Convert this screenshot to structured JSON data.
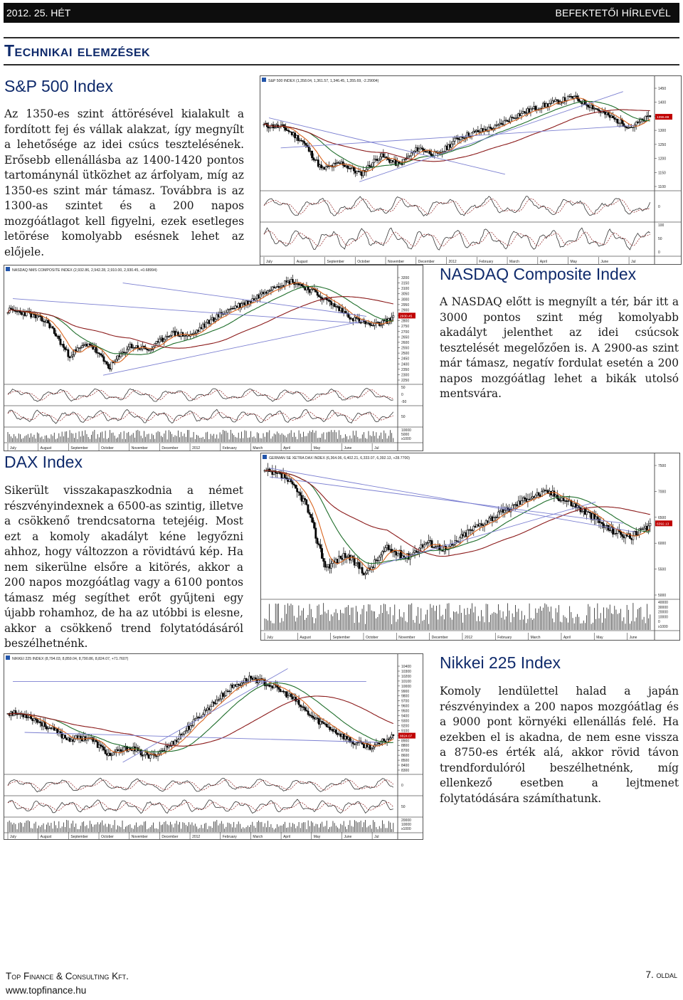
{
  "header": {
    "date": "2012. 25. HÉT",
    "publication": "BEFEKTETŐI HÍRLEVÉL"
  },
  "section_title": "Technikai elemzések",
  "sp500": {
    "title": "S&P 500 Index",
    "text": "Az 1350-es szint áttörésével kialakult a fordított fej és vállak alakzat, így megnyílt a lehetősége az idei csúcs tesztelésének. Erősebb ellenállásba az 1400-1420 pontos tartománynál ütközhet az árfolyam, míg az 1350-es szint már támasz. Továbbra is az 1300-as szintet és a 200 napos mozgóátlagot kell figyelni, ezek esetleges letörése komolyabb esésnek lehet az előjele."
  },
  "nasdaq": {
    "title": "NASDAQ Composite Index",
    "text": "A NASDAQ előtt is megnyílt a tér, bár itt a 3000 pontos szint még komolyabb akadályt jelenthet az idei csúcsok tesztelését megelőzően is. A 2900-as szint már támasz, negatív fordulat esetén a 200 napos mozgóátlag lehet a bikák utolsó mentsvára."
  },
  "dax": {
    "title": "DAX Index",
    "text": "Sikerült visszakapaszkodnia a német részvényindexnek a 6500-as szintig, illetve a csökkenő trendcsatorna tetejéig. Most ezt a komoly akadályt kéne legyőzni ahhoz, hogy változzon a rövidtávú kép. Ha nem sikerülne elsőre a kitörés, akkor a 200 napos mozgóátlag vagy a 6100 pontos támasz még segíthet erőt gyűjteni egy újabb rohamhoz, de ha az utóbbi is elesne, akkor a csökkenő trend folytatódásáról beszélhetnénk."
  },
  "nikkei": {
    "title": "Nikkei 225 Index",
    "text": "Komoly lendülettel halad a japán részvényindex a 200 napos mozgóátlag és a 9000 pont környéki ellenállás felé. Ha ezekben el is akadna, de nem esne vissza a 8750-es érték alá, akkor rövid távon trendfordulóról beszélhetnénk, míg ellenkező esetben a lejtmenet folytatódására számíthatunk."
  },
  "footer": {
    "company": "Top Finance & Consulting Kft.",
    "website": "www.topfinance.hu",
    "page_number": "7.",
    "page_label": "oldal"
  },
  "colors": {
    "header_bg": "#0d0d0d",
    "title_blue": "#0f2a6b",
    "candle": "#000000",
    "ma_short": "#d9641e",
    "ma_mid": "#1f6e2b",
    "ma_long": "#8b1a1a",
    "trendline": "#7b7fd1",
    "last_price_box": "#c00000"
  },
  "chart_data": [
    {
      "name": "sp500",
      "type": "candlestick",
      "title": "S&P 500 INDEX (1,358.04, 1,361.57, 1,346.45, 1,355.69, -2.29004)",
      "months": [
        "July",
        "August",
        "September",
        "October",
        "November",
        "December",
        "2012",
        "February",
        "March",
        "April",
        "May",
        "June",
        "Jul"
      ],
      "price_ticks": [
        "1450",
        "1400",
        "1350",
        "1300",
        "1250",
        "1200",
        "1150",
        "1100"
      ],
      "last_price": "1355.69",
      "osc1_ticks": [
        "0"
      ],
      "osc2_ticks": [
        "100",
        "50",
        "0"
      ]
    },
    {
      "name": "nasdaq",
      "type": "candlestick",
      "title": "NASDAQ NMS COMPOSITE INDEX (2,932.86, 2,942.28, 2,910.00, 2,930.45, +0.68994)",
      "months": [
        "July",
        "August",
        "September",
        "October",
        "November",
        "December",
        "2012",
        "February",
        "March",
        "April",
        "May",
        "June",
        "Jul"
      ],
      "price_ticks": [
        "3200",
        "3150",
        "3100",
        "3050",
        "3000",
        "2950",
        "2900",
        "2850",
        "2800",
        "2750",
        "2700",
        "2650",
        "2600",
        "2550",
        "2500",
        "2450",
        "2400",
        "2350",
        "2300",
        "2250"
      ],
      "last_price": "2930.45",
      "osc1_ticks": [
        "50",
        "0",
        "-50"
      ],
      "osc2_ticks": [
        "50"
      ],
      "volume_ticks": [
        "10000",
        "5000",
        "x1000"
      ]
    },
    {
      "name": "dax",
      "type": "candlestick",
      "title": "GERMAN SE XETRA DAX INDEX (6,364.06, 6,402.21, 6,333.07, 6,392.13, +28.7700)",
      "months": [
        "July",
        "August",
        "September",
        "October",
        "November",
        "December",
        "2012",
        "February",
        "March",
        "April",
        "May",
        "June"
      ],
      "price_ticks": [
        "7500",
        "7000",
        "6500",
        "6000",
        "5500",
        "5000"
      ],
      "last_price": "6392.13",
      "volume_ticks": [
        "40000",
        "30000",
        "20000",
        "10000",
        "0",
        "x1000"
      ]
    },
    {
      "name": "nikkei",
      "type": "candlestick",
      "title": "NIKKEI 225 INDEX (8,794.03, 8,859.04, 8,790.86, 8,824.07, +71.7607)",
      "months": [
        "July",
        "August",
        "September",
        "October",
        "November",
        "December",
        "2012",
        "February",
        "March",
        "April",
        "May",
        "June",
        "Jul"
      ],
      "price_ticks": [
        "10400",
        "10300",
        "10200",
        "10100",
        "10000",
        "9900",
        "9800",
        "9700",
        "9600",
        "9500",
        "9400",
        "9300",
        "9200",
        "9100",
        "9000",
        "8900",
        "8800",
        "8700",
        "8600",
        "8500",
        "8400",
        "8300"
      ],
      "last_price": "8824.07",
      "osc1_ticks": [
        "0"
      ],
      "osc2_ticks": [
        "50"
      ],
      "volume_ticks": [
        "20000",
        "10000",
        "x1000"
      ]
    }
  ]
}
